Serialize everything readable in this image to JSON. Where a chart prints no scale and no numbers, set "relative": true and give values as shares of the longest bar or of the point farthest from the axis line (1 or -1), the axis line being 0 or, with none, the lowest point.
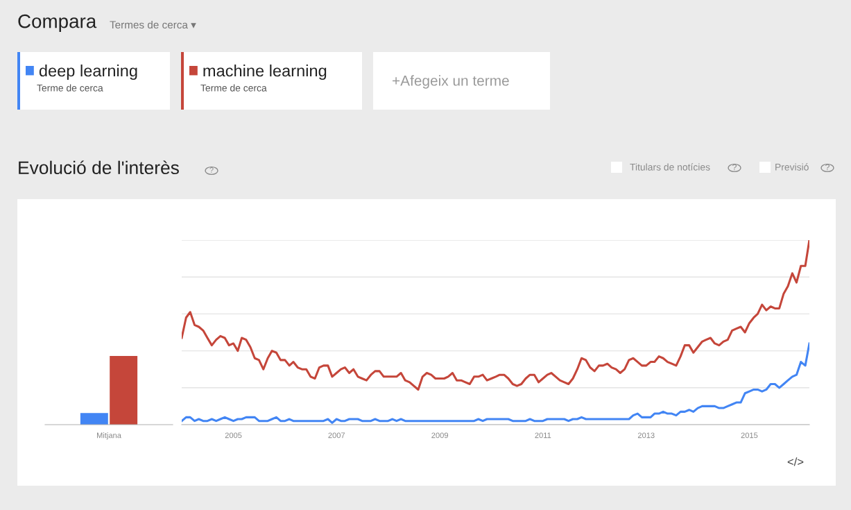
{
  "chart_data": [
    {
      "type": "bar",
      "relative": true,
      "categories": [
        "Mitjana"
      ],
      "series": [
        {
          "color": "#4285f4",
          "values": [
            0.17
          ]
        },
        {
          "color": "#c5463a",
          "values": [
            1.0
          ]
        }
      ]
    },
    {
      "type": "line",
      "title": "Evolució de l'interès",
      "relative": true,
      "grid": "y",
      "legend": "top left",
      "annotations": [
        "Compara",
        "Termes de cerca ▾",
        "Terme de cerca",
        "Terme de cerca",
        "+Afegeix un terme",
        "Titulars de notícies",
        "Previsió",
        "?",
        "?",
        "?",
        "</>"
      ],
      "x": [
        "2004-01",
        "2004-02",
        "2004-03",
        "2004-04",
        "2004-05",
        "2004-06",
        "2004-07",
        "2004-08",
        "2004-09",
        "2004-10",
        "2004-11",
        "2004-12",
        "2005-01",
        "2005-02",
        "2005-03",
        "2005-04",
        "2005-05",
        "2005-06",
        "2005-07",
        "2005-08",
        "2005-09",
        "2005-10",
        "2005-11",
        "2005-12",
        "2006-01",
        "2006-02",
        "2006-03",
        "2006-04",
        "2006-05",
        "2006-06",
        "2006-07",
        "2006-08",
        "2006-09",
        "2006-10",
        "2006-11",
        "2006-12",
        "2007-01",
        "2007-02",
        "2007-03",
        "2007-04",
        "2007-05",
        "2007-06",
        "2007-07",
        "2007-08",
        "2007-09",
        "2007-10",
        "2007-11",
        "2007-12",
        "2008-01",
        "2008-02",
        "2008-03",
        "2008-04",
        "2008-05",
        "2008-06",
        "2008-07",
        "2008-08",
        "2008-09",
        "2008-10",
        "2008-11",
        "2008-12",
        "2009-01",
        "2009-02",
        "2009-03",
        "2009-04",
        "2009-05",
        "2009-06",
        "2009-07",
        "2009-08",
        "2009-09",
        "2009-10",
        "2009-11",
        "2009-12",
        "2010-01",
        "2010-02",
        "2010-03",
        "2010-04",
        "2010-05",
        "2010-06",
        "2010-07",
        "2010-08",
        "2010-09",
        "2010-10",
        "2010-11",
        "2010-12",
        "2011-01",
        "2011-02",
        "2011-03",
        "2011-04",
        "2011-05",
        "2011-06",
        "2011-07",
        "2011-08",
        "2011-09",
        "2011-10",
        "2011-11",
        "2011-12",
        "2012-01",
        "2012-02",
        "2012-03",
        "2012-04",
        "2012-05",
        "2012-06",
        "2012-07",
        "2012-08",
        "2012-09",
        "2012-10",
        "2012-11",
        "2012-12",
        "2013-01",
        "2013-02",
        "2013-03",
        "2013-04",
        "2013-05",
        "2013-06",
        "2013-07",
        "2013-08",
        "2013-09",
        "2013-10",
        "2013-11",
        "2013-12",
        "2014-01",
        "2014-02",
        "2014-03",
        "2014-04",
        "2014-05",
        "2014-06",
        "2014-07",
        "2014-08",
        "2014-09",
        "2014-10",
        "2014-11",
        "2014-12",
        "2015-01",
        "2015-02",
        "2015-03",
        "2015-04",
        "2015-05",
        "2015-06",
        "2015-07",
        "2015-08",
        "2015-09",
        "2015-10",
        "2015-11",
        "2015-12",
        "2016-01",
        "2016-02",
        "2016-03"
      ],
      "xlim": [
        "2004-01",
        "2016-03"
      ],
      "xticks": [
        {
          "value": "2005-01",
          "label": "2005"
        },
        {
          "value": "2007-01",
          "label": "2007"
        },
        {
          "value": "2009-01",
          "label": "2009"
        },
        {
          "value": "2011-01",
          "label": "2011"
        },
        {
          "value": "2013-01",
          "label": "2013"
        },
        {
          "value": "2015-01",
          "label": "2015"
        }
      ],
      "series": [
        {
          "name": "deep learning",
          "color": "#4285f4",
          "values": [
            0.02,
            0.04,
            0.04,
            0.02,
            0.03,
            0.02,
            0.02,
            0.03,
            0.02,
            0.03,
            0.04,
            0.03,
            0.02,
            0.03,
            0.03,
            0.04,
            0.04,
            0.04,
            0.02,
            0.02,
            0.02,
            0.03,
            0.04,
            0.02,
            0.02,
            0.03,
            0.02,
            0.02,
            0.02,
            0.02,
            0.02,
            0.02,
            0.02,
            0.02,
            0.03,
            0.01,
            0.03,
            0.02,
            0.02,
            0.03,
            0.03,
            0.03,
            0.02,
            0.02,
            0.02,
            0.03,
            0.02,
            0.02,
            0.02,
            0.03,
            0.02,
            0.03,
            0.02,
            0.02,
            0.02,
            0.02,
            0.02,
            0.02,
            0.02,
            0.02,
            0.02,
            0.02,
            0.02,
            0.02,
            0.02,
            0.02,
            0.02,
            0.02,
            0.02,
            0.03,
            0.02,
            0.03,
            0.03,
            0.03,
            0.03,
            0.03,
            0.03,
            0.02,
            0.02,
            0.02,
            0.02,
            0.03,
            0.02,
            0.02,
            0.02,
            0.03,
            0.03,
            0.03,
            0.03,
            0.03,
            0.02,
            0.03,
            0.03,
            0.04,
            0.03,
            0.03,
            0.03,
            0.03,
            0.03,
            0.03,
            0.03,
            0.03,
            0.03,
            0.03,
            0.03,
            0.05,
            0.06,
            0.04,
            0.04,
            0.04,
            0.06,
            0.06,
            0.07,
            0.06,
            0.06,
            0.05,
            0.07,
            0.07,
            0.08,
            0.07,
            0.09,
            0.1,
            0.1,
            0.1,
            0.1,
            0.09,
            0.09,
            0.1,
            0.11,
            0.12,
            0.12,
            0.17,
            0.18,
            0.19,
            0.19,
            0.18,
            0.19,
            0.22,
            0.22,
            0.2,
            0.22,
            0.24,
            0.26,
            0.27,
            0.34,
            0.32,
            0.44
          ]
        },
        {
          "name": "machine learning",
          "color": "#c5463a",
          "values": [
            0.47,
            0.58,
            0.61,
            0.54,
            0.53,
            0.51,
            0.47,
            0.43,
            0.46,
            0.48,
            0.47,
            0.43,
            0.44,
            0.4,
            0.47,
            0.46,
            0.42,
            0.36,
            0.35,
            0.3,
            0.36,
            0.4,
            0.39,
            0.35,
            0.35,
            0.32,
            0.34,
            0.31,
            0.3,
            0.3,
            0.26,
            0.25,
            0.31,
            0.32,
            0.32,
            0.26,
            0.28,
            0.3,
            0.31,
            0.28,
            0.3,
            0.26,
            0.25,
            0.24,
            0.27,
            0.29,
            0.29,
            0.26,
            0.26,
            0.26,
            0.26,
            0.28,
            0.24,
            0.23,
            0.21,
            0.19,
            0.26,
            0.28,
            0.27,
            0.25,
            0.25,
            0.25,
            0.26,
            0.28,
            0.24,
            0.24,
            0.23,
            0.22,
            0.26,
            0.26,
            0.27,
            0.24,
            0.25,
            0.26,
            0.27,
            0.27,
            0.25,
            0.22,
            0.21,
            0.22,
            0.25,
            0.27,
            0.27,
            0.23,
            0.25,
            0.27,
            0.28,
            0.26,
            0.24,
            0.23,
            0.22,
            0.25,
            0.3,
            0.36,
            0.35,
            0.31,
            0.29,
            0.32,
            0.32,
            0.33,
            0.31,
            0.3,
            0.28,
            0.3,
            0.35,
            0.36,
            0.34,
            0.32,
            0.32,
            0.34,
            0.34,
            0.37,
            0.36,
            0.34,
            0.33,
            0.32,
            0.37,
            0.43,
            0.43,
            0.39,
            0.42,
            0.45,
            0.46,
            0.47,
            0.44,
            0.43,
            0.45,
            0.46,
            0.51,
            0.52,
            0.53,
            0.5,
            0.55,
            0.58,
            0.6,
            0.65,
            0.62,
            0.64,
            0.63,
            0.63,
            0.71,
            0.75,
            0.82,
            0.77,
            0.86,
            0.86,
            1.0
          ]
        }
      ]
    }
  ]
}
